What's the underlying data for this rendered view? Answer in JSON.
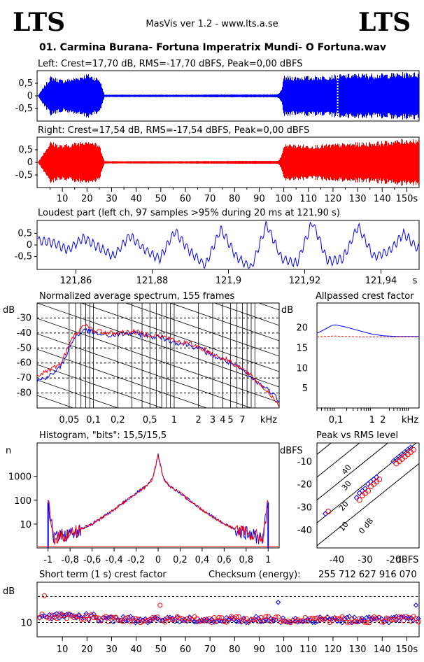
{
  "header": {
    "logo_left": "LTS",
    "logo_right": "LTS",
    "app_title": "MasVis ver 1.2 - www.lts.a.se",
    "file_name": "01. Carmina Burana- Fortuna Imperatrix Mundi- O Fortuna.wav"
  },
  "colors": {
    "left": "#0000ff",
    "right": "#ff0000",
    "axis": "#000000",
    "grid": "#000000"
  },
  "chart_data": [
    {
      "id": "left_waveform",
      "type": "area",
      "title": "Left: Crest=17,70 dB, RMS=-17,70 dBFS, Peak=0,00 dBFS",
      "channel": "left",
      "ylim": [
        -1,
        1
      ],
      "y_ticks": [
        "0,5",
        "0",
        "-0,5"
      ],
      "x_ticks": [
        "10",
        "20",
        "30",
        "40",
        "50",
        "60",
        "70",
        "80",
        "90",
        "100",
        "110",
        "120",
        "130",
        "140",
        "150s"
      ],
      "xlim": [
        0,
        155
      ],
      "marker_x": 121.9,
      "envelope": {
        "t": [
          0,
          5,
          10,
          15,
          20,
          25,
          27,
          30,
          40,
          60,
          80,
          97,
          98,
          99,
          100,
          110,
          120,
          130,
          140,
          150,
          155
        ],
        "amp": [
          0.02,
          0.8,
          0.65,
          0.75,
          0.9,
          0.7,
          0.05,
          0.05,
          0.05,
          0.05,
          0.06,
          0.06,
          0.1,
          0.3,
          0.8,
          0.8,
          0.85,
          0.9,
          0.9,
          0.95,
          0.95
        ]
      }
    },
    {
      "id": "right_waveform",
      "type": "area",
      "title": "Right: Crest=17,54 dB, RMS=-17,54 dBFS, Peak=0,00 dBFS",
      "channel": "right",
      "ylim": [
        -1,
        1
      ],
      "y_ticks": [
        "0,5",
        "0",
        "-0,5"
      ],
      "envelope": {
        "t": [
          0,
          5,
          10,
          15,
          20,
          25,
          27,
          30,
          40,
          60,
          80,
          97,
          98,
          99,
          100,
          110,
          120,
          130,
          140,
          150,
          155
        ],
        "amp": [
          0.02,
          0.85,
          0.7,
          0.8,
          0.95,
          0.7,
          0.05,
          0.05,
          0.05,
          0.05,
          0.06,
          0.06,
          0.1,
          0.3,
          0.75,
          0.7,
          0.75,
          0.8,
          0.85,
          0.95,
          0.95
        ]
      }
    },
    {
      "id": "loudest_part",
      "type": "line",
      "title": "Loudest part (left  ch, 97 samples >95% during 20 ms at 121,90 s)",
      "x_ticks": [
        "121,86",
        "121,88",
        "121,9",
        "121,92",
        "121,94",
        "s"
      ],
      "xlim": [
        121.85,
        121.95
      ],
      "ylim": [
        -1,
        1
      ],
      "y_ticks": [
        "0,5",
        "0",
        "-0,5"
      ],
      "x": [
        121.85,
        121.854,
        121.858,
        121.862,
        121.866,
        121.87,
        121.874,
        121.878,
        121.882,
        121.886,
        121.89,
        121.894,
        121.898,
        121.902,
        121.906,
        121.91,
        121.914,
        121.918,
        121.922,
        121.926,
        121.93,
        121.934,
        121.938,
        121.942,
        121.946,
        121.95
      ],
      "y": [
        0.2,
        0.1,
        -0.2,
        0.3,
        -0.1,
        -0.5,
        0.4,
        -0.2,
        -0.6,
        0.6,
        -0.3,
        -0.9,
        0.7,
        -0.5,
        -1.0,
        0.9,
        -0.6,
        -0.8,
        1.0,
        -0.7,
        -0.6,
        0.8,
        -0.5,
        -0.3,
        0.5,
        -0.2
      ]
    },
    {
      "id": "spectrum",
      "type": "line",
      "title": "Normalized average spectrum, 155 frames",
      "ylabel": "dB",
      "xlabel": "kHz",
      "x_ticks": [
        "0,05",
        "0,1",
        "0,2",
        "0,5",
        "1",
        "2",
        "3",
        "4",
        "5",
        "7",
        "kHz"
      ],
      "y_ticks": [
        "-30",
        "-40",
        "-50",
        "-60",
        "-70",
        "-80"
      ],
      "ylim": [
        -90,
        -20
      ],
      "log_x": true,
      "xlim_khz": [
        0.02,
        20
      ],
      "series": [
        {
          "channel": "left",
          "x": [
            0.02,
            0.03,
            0.04,
            0.05,
            0.06,
            0.08,
            0.1,
            0.15,
            0.2,
            0.3,
            0.5,
            0.8,
            1,
            1.5,
            2,
            3,
            5,
            7,
            10,
            15,
            20
          ],
          "y": [
            -72,
            -68,
            -62,
            -50,
            -42,
            -38,
            -40,
            -42,
            -41,
            -40,
            -42,
            -44,
            -46,
            -48,
            -50,
            -55,
            -60,
            -65,
            -72,
            -78,
            -85
          ]
        },
        {
          "channel": "right",
          "x": [
            0.02,
            0.03,
            0.04,
            0.05,
            0.06,
            0.08,
            0.1,
            0.15,
            0.2,
            0.3,
            0.5,
            0.8,
            1,
            1.5,
            2,
            3,
            5,
            7,
            10,
            15,
            20
          ],
          "y": [
            -68,
            -64,
            -60,
            -48,
            -40,
            -35,
            -38,
            -40,
            -40,
            -39,
            -41,
            -43,
            -45,
            -47,
            -49,
            -54,
            -59,
            -64,
            -71,
            -80,
            -88
          ]
        }
      ]
    },
    {
      "id": "allpassed_crest",
      "type": "line",
      "title": "Allpassed crest factor",
      "ylabel": "dB",
      "xlabel": "kHz",
      "x_ticks": [
        "0,1",
        "1",
        "2",
        "kHz"
      ],
      "y_ticks": [
        "20",
        "15",
        "10",
        "5"
      ],
      "ylim": [
        0,
        26
      ],
      "log_x": true,
      "xlim_khz": [
        0.03,
        20
      ],
      "series": [
        {
          "channel": "left",
          "x": [
            0.03,
            0.05,
            0.08,
            0.1,
            0.2,
            0.5,
            1,
            2,
            5,
            10,
            20
          ],
          "y": [
            18.5,
            19.5,
            20.5,
            20.6,
            20.0,
            19.0,
            18.3,
            17.9,
            17.7,
            17.7,
            17.7
          ]
        },
        {
          "channel": "right",
          "x": [
            0.03,
            0.05,
            0.08,
            0.1,
            0.2,
            0.5,
            1,
            2,
            5,
            10,
            20
          ],
          "y": [
            17.6,
            17.7,
            17.8,
            17.8,
            17.7,
            17.6,
            17.6,
            17.6,
            17.6,
            17.6,
            17.6
          ]
        }
      ]
    },
    {
      "id": "histogram",
      "type": "line",
      "title": "Histogram, \"bits\": 15,5/15,5",
      "ylabel": "n",
      "x_ticks": [
        "-1",
        "-0,8",
        "-0,6",
        "-0,4",
        "-0,2",
        "0",
        "0,2",
        "0,4",
        "0,6",
        "0,8",
        "1"
      ],
      "y_ticks": [
        "1000",
        "100",
        "10"
      ],
      "log_y": true,
      "xlim": [
        -1.1,
        1.1
      ],
      "ylim_log10": [
        0,
        4.4
      ],
      "x": [
        -1.0,
        -0.95,
        -0.8,
        -0.6,
        -0.4,
        -0.2,
        -0.1,
        -0.05,
        0,
        0.05,
        0.1,
        0.2,
        0.4,
        0.6,
        0.8,
        0.95,
        1.0
      ],
      "y_log10": [
        1.9,
        0.4,
        0.6,
        1.0,
        1.6,
        2.3,
        2.6,
        2.9,
        3.9,
        2.9,
        2.6,
        2.3,
        1.6,
        1.0,
        0.6,
        0.4,
        1.9
      ]
    },
    {
      "id": "peak_vs_rms",
      "type": "scatter",
      "title": "Peak vs RMS level",
      "ylabel": "dBFS",
      "xlabel": "dBFS",
      "x_ticks": [
        "-40",
        "-30",
        "-20",
        "dBFS"
      ],
      "y_ticks": [
        "-10",
        "-20",
        "-30",
        "-40"
      ],
      "xlim": [
        -47,
        -11
      ],
      "ylim": [
        -48,
        -2
      ],
      "diagonal_labels": [
        "40",
        "30",
        "20",
        "10",
        "0 dB"
      ],
      "series": [
        {
          "channel": "left",
          "x": [
            -44,
            -33,
            -32,
            -31,
            -30,
            -29,
            -28,
            -27,
            -26,
            -20,
            -19,
            -18,
            -17,
            -16,
            -15,
            -14
          ],
          "y": [
            -33,
            -26,
            -24,
            -23,
            -22,
            -20,
            -19,
            -18,
            -17,
            -10,
            -9,
            -8,
            -7,
            -6,
            -5,
            -4
          ]
        },
        {
          "channel": "right",
          "x": [
            -43,
            -32,
            -31,
            -30,
            -29,
            -28,
            -27,
            -26,
            -25,
            -19,
            -18,
            -17,
            -16,
            -15,
            -14,
            -13
          ],
          "y": [
            -32,
            -27,
            -25,
            -24,
            -23,
            -21,
            -20,
            -19,
            -18,
            -11,
            -10,
            -9,
            -8,
            -7,
            -6,
            -5
          ]
        }
      ]
    },
    {
      "id": "short_term_crest",
      "type": "scatter",
      "title": "Short term (1 s) crest factor",
      "checksum_label": "Checksum (energy):",
      "checksum_value": "255 712 627 916 070",
      "ylabel": "dB",
      "y_ticks": [
        "10"
      ],
      "dashed_levels": [
        10,
        19
      ],
      "ylim": [
        5,
        24
      ],
      "x_ticks": [
        "10",
        "20",
        "30",
        "40",
        "50",
        "60",
        "70",
        "80",
        "90",
        "100",
        "110",
        "120",
        "130",
        "140",
        "150s"
      ],
      "xlim": [
        0,
        155
      ],
      "outliers": [
        {
          "t": 3,
          "v": 19.3,
          "channel": "right"
        },
        {
          "t": 50,
          "v": 16,
          "channel": "right"
        },
        {
          "t": 98,
          "v": 17,
          "channel": "left"
        },
        {
          "t": 154,
          "v": 16,
          "channel": "left"
        }
      ]
    }
  ]
}
